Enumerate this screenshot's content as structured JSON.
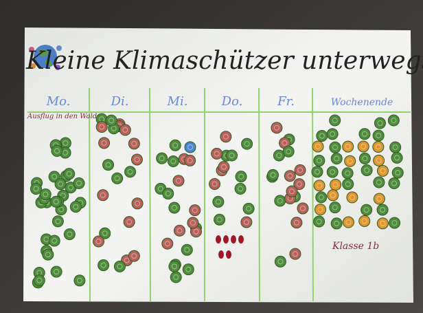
{
  "title": "Kleine Klimaschützer unterwegs",
  "columns": [
    {
      "label": "Mo.",
      "note": "Ausflug in den Wald"
    },
    {
      "label": "Di."
    },
    {
      "label": "Mi."
    },
    {
      "label": "Do."
    },
    {
      "label": "Fr."
    },
    {
      "label": "Wochenende"
    }
  ],
  "class_label": "Klasse 1b"
}
